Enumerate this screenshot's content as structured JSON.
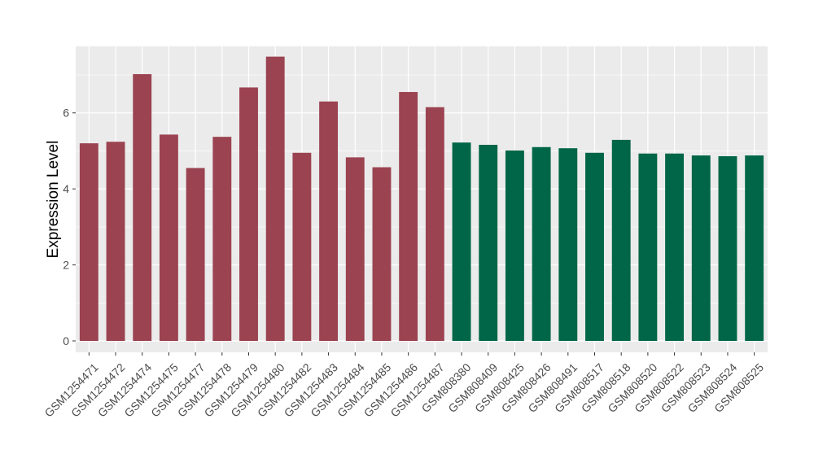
{
  "chart_data": {
    "type": "bar",
    "ylabel": "Expression Level",
    "xlabel": "",
    "ylim": [
      -0.3,
      7.75
    ],
    "yticks": [
      0,
      2,
      4,
      6
    ],
    "grid": true,
    "colors": {
      "panel": "#EBEBEB",
      "grid": "#FFFFFF",
      "group_a": "#9B4351",
      "group_b": "#006647",
      "text": "#4D4D4D",
      "label": "#000000"
    },
    "categories": [
      "GSM1254471",
      "GSM1254472",
      "GSM1254474",
      "GSM1254475",
      "GSM1254477",
      "GSM1254478",
      "GSM1254479",
      "GSM1254480",
      "GSM1254482",
      "GSM1254483",
      "GSM1254484",
      "GSM1254485",
      "GSM1254486",
      "GSM1254487",
      "GSM808380",
      "GSM808409",
      "GSM808425",
      "GSM808426",
      "GSM808491",
      "GSM808517",
      "GSM808518",
      "GSM808520",
      "GSM808522",
      "GSM808523",
      "GSM808524",
      "GSM808525"
    ],
    "values": [
      5.2,
      5.24,
      7.02,
      5.43,
      4.55,
      5.37,
      6.67,
      7.48,
      4.95,
      6.3,
      4.83,
      4.57,
      6.55,
      6.15,
      5.22,
      5.16,
      5.01,
      5.1,
      5.07,
      4.95,
      5.29,
      4.93,
      4.93,
      4.88,
      4.86,
      4.88
    ],
    "groups": [
      "a",
      "a",
      "a",
      "a",
      "a",
      "a",
      "a",
      "a",
      "a",
      "a",
      "a",
      "a",
      "a",
      "a",
      "b",
      "b",
      "b",
      "b",
      "b",
      "b",
      "b",
      "b",
      "b",
      "b",
      "b",
      "b"
    ]
  }
}
